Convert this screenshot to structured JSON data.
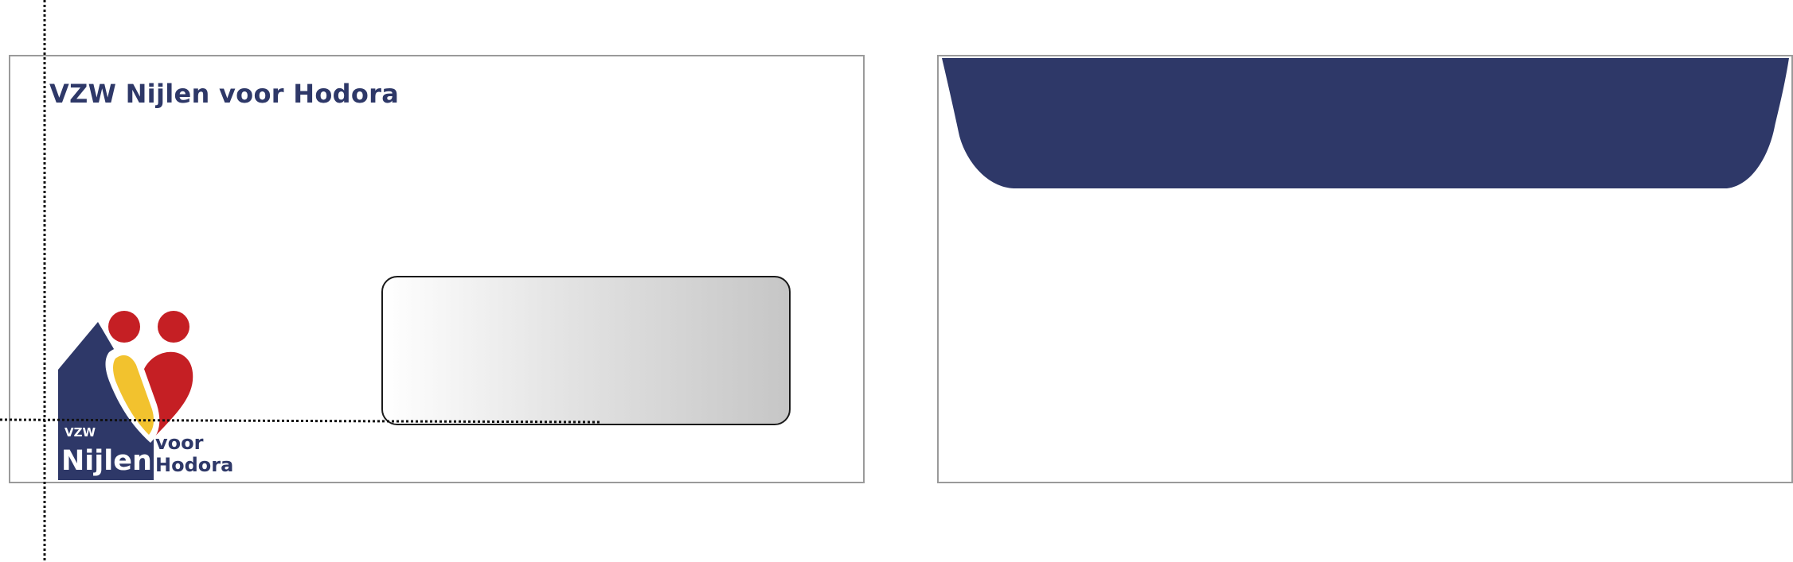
{
  "front": {
    "sender_line": "VZW Nijlen voor Hodora",
    "logo": {
      "small_word": "VZW",
      "main_word": "Nijlen",
      "second_word_1": "voor",
      "second_word_2": "Hodora"
    }
  },
  "colors": {
    "navy": "#2e3868",
    "red": "#c51f24",
    "yellow": "#f2c22e",
    "border": "#9a9a9a"
  },
  "icons": [
    "logo-heart-icon",
    "logo-person-head-icon",
    "logo-house-roof-icon"
  ]
}
